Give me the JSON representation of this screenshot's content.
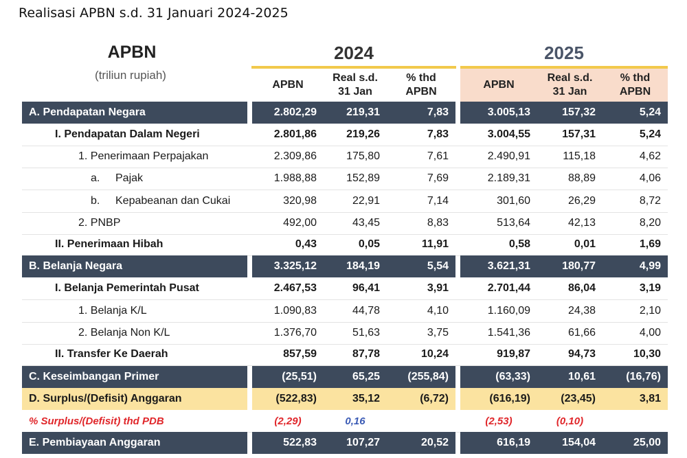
{
  "caption": "Realisasi APBN s.d. 31 Januari 2024-2025",
  "header": {
    "title": "APBN",
    "subtitle": "(triliun rupiah)",
    "year_2024": "2024",
    "year_2025": "2025",
    "col_apbn": "APBN",
    "col_real_l1": "Real s.d.",
    "col_real_l2": "31 Jan",
    "col_pct_l1": "% thd",
    "col_pct_l2": "APBN"
  },
  "colors": {
    "dark_row": "#3d4a5c",
    "yellow_row": "#fbe3a0",
    "accent_line": "#f2c94c",
    "peach": "#f9dccb",
    "red_text": "#e0262a",
    "blue_text": "#3b5bb5"
  },
  "rows": [
    {
      "label": "A.  Pendapatan Negara",
      "v": [
        "2.802,29",
        "219,31",
        "7,83",
        "3.005,13",
        "157,32",
        "5,24"
      ]
    },
    {
      "label": "I.   Pendapatan Dalam Negeri",
      "v": [
        "2.801,86",
        "219,26",
        "7,83",
        "3.004,55",
        "157,31",
        "5,24"
      ]
    },
    {
      "label": "1. Penerimaan Perpajakan",
      "v": [
        "2.309,86",
        "175,80",
        "7,61",
        "2.490,91",
        "115,18",
        "4,62"
      ]
    },
    {
      "marker": "a.",
      "label": "Pajak",
      "v": [
        "1.988,88",
        "152,89",
        "7,69",
        "2.189,31",
        "88,89",
        "4,06"
      ]
    },
    {
      "marker": "b.",
      "label": "Kepabeanan dan Cukai",
      "v": [
        "320,98",
        "22,91",
        "7,14",
        "301,60",
        "26,29",
        "8,72"
      ]
    },
    {
      "label": "2. PNBP",
      "v": [
        "492,00",
        "43,45",
        "8,83",
        "513,64",
        "42,13",
        "8,20"
      ]
    },
    {
      "label": "II.  Penerimaan Hibah",
      "v": [
        "0,43",
        "0,05",
        "11,91",
        "0,58",
        "0,01",
        "1,69"
      ]
    },
    {
      "label": "B.  Belanja Negara",
      "v": [
        "3.325,12",
        "184,19",
        "5,54",
        "3.621,31",
        "180,77",
        "4,99"
      ]
    },
    {
      "label": "I.   Belanja Pemerintah Pusat",
      "v": [
        "2.467,53",
        "96,41",
        "3,91",
        "2.701,44",
        "86,04",
        "3,19"
      ]
    },
    {
      "label": "1. Belanja K/L",
      "v": [
        "1.090,83",
        "44,78",
        "4,10",
        "1.160,09",
        "24,38",
        "2,10"
      ]
    },
    {
      "label": "2. Belanja Non K/L",
      "v": [
        "1.376,70",
        "51,63",
        "3,75",
        "1.541,36",
        "61,66",
        "4,00"
      ]
    },
    {
      "label": "II.  Transfer Ke Daerah",
      "v": [
        "857,59",
        "87,78",
        "10,24",
        "919,87",
        "94,73",
        "10,30"
      ]
    },
    {
      "label": "C.  Keseimbangan Primer",
      "v": [
        "(25,51)",
        "65,25",
        "(255,84)",
        "(63,33)",
        "10,61",
        "(16,76)"
      ]
    },
    {
      "label": "D.  Surplus/(Defisit) Anggaran",
      "v": [
        "(522,83)",
        "35,12",
        "(6,72)",
        "(616,19)",
        "(23,45)",
        "3,81"
      ]
    },
    {
      "label": "% Surplus/(Defisit) thd PDB",
      "v": [
        "(2,29)",
        "0,16",
        "",
        "(2,53)",
        "(0,10)",
        ""
      ]
    },
    {
      "label": "E.  Pembiayaan Anggaran",
      "v": [
        "522,83",
        "107,27",
        "20,52",
        "616,19",
        "154,04",
        "25,00"
      ]
    }
  ]
}
